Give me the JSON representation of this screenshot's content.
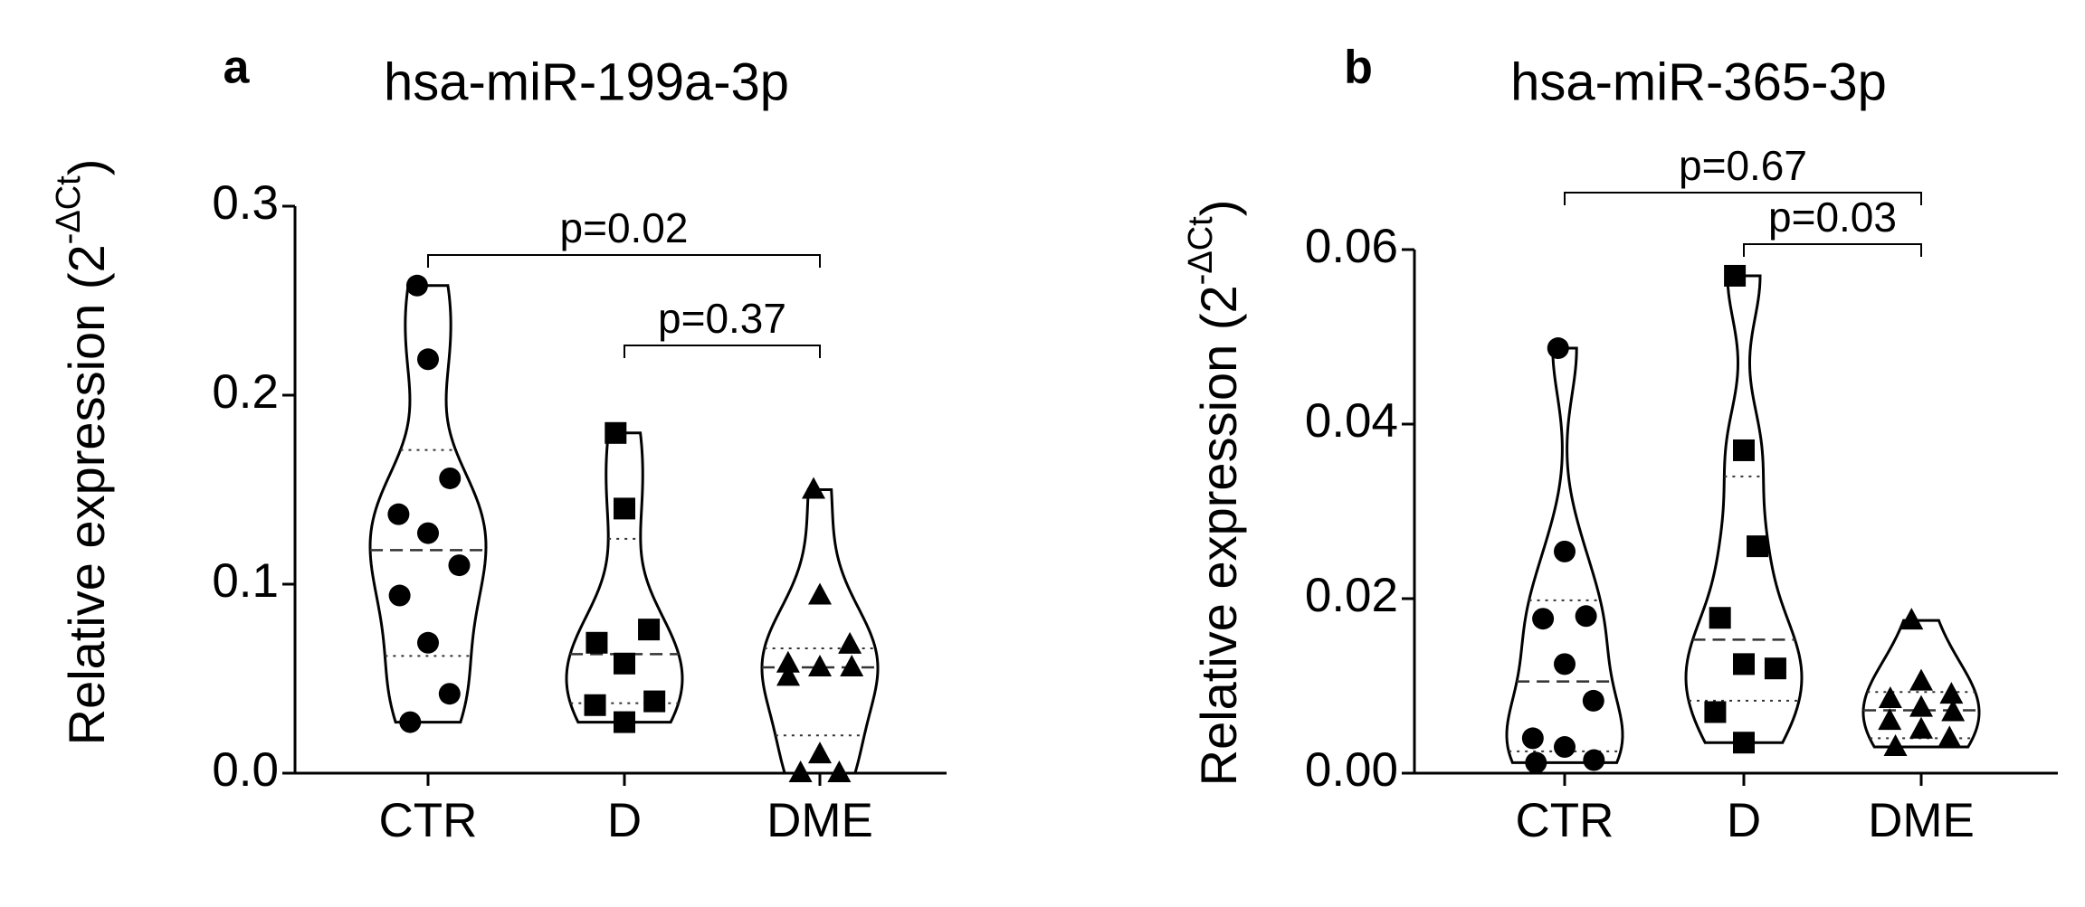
{
  "chart_data": [
    {
      "type": "violin",
      "panel_label": "a",
      "title": "hsa-miR-199a-3p",
      "y_label": {
        "text": "Relative expression (2",
        "superscript": "-ΔCt",
        "suffix": ")"
      },
      "categories": [
        "CTR",
        "D",
        "DME"
      ],
      "markers": [
        "circle",
        "square",
        "triangle"
      ],
      "values": [
        [
          0.258,
          0.219,
          0.156,
          0.137,
          0.127,
          0.11,
          0.094,
          0.069,
          0.042,
          0.027
        ],
        [
          0.18,
          0.14,
          0.076,
          0.069,
          0.058,
          0.038,
          0.036,
          0.027
        ],
        [
          0.15,
          0.094,
          0.068,
          0.058,
          0.056,
          0.056,
          0.051,
          0.01,
          0,
          0
        ]
      ],
      "median": [
        0.118,
        0.063,
        0.056
      ],
      "q1": [
        0.062,
        0.037,
        0.02
      ],
      "q3": [
        0.171,
        0.124,
        0.066
      ],
      "ylim": [
        0,
        0.3
      ],
      "yticks": [
        {
          "value": 0,
          "label": "0.0"
        },
        0.1,
        0.2,
        0.3
      ],
      "annotations": [
        {
          "text": "p=0.02",
          "from": "CTR",
          "to": "DME"
        },
        {
          "text": "p=0.37",
          "from": "D",
          "to": "DME"
        }
      ],
      "color": "#000000"
    },
    {
      "type": "violin",
      "panel_label": "b",
      "title": "hsa-miR-365-3p",
      "y_label": {
        "text": "Relative expression (2",
        "superscript": "-ΔCt",
        "suffix": ")"
      },
      "categories": [
        "CTR",
        "D",
        "DME"
      ],
      "markers": [
        "circle",
        "square",
        "triangle"
      ],
      "values": [
        [
          0.0487,
          0.0254,
          0.018,
          0.0177,
          0.0125,
          0.0083,
          0.004,
          0.003,
          0.0015,
          0.0012
        ],
        [
          0.057,
          0.037,
          0.026,
          0.0178,
          0.0125,
          0.012,
          0.007,
          0.0035
        ],
        [
          0.0175,
          0.0105,
          0.009,
          0.0085,
          0.0075,
          0.007,
          0.006,
          0.005,
          0.004,
          0.003
        ]
      ],
      "median": [
        0.0105,
        0.0153,
        0.0072
      ],
      "q1": [
        0.0025,
        0.0083,
        0.004
      ],
      "q3": [
        0.0198,
        0.034,
        0.0093
      ],
      "ylim": [
        0,
        0.06
      ],
      "yticks": [
        {
          "value": 0,
          "label": "0.00"
        },
        {
          "value": 0.02,
          "label": "0.02"
        },
        {
          "value": 0.04,
          "label": "0.04"
        },
        {
          "value": 0.06,
          "label": "0.06"
        }
      ],
      "annotations": [
        {
          "text": "p=0.67",
          "from": "CTR",
          "to": "DME"
        },
        {
          "text": "p=0.03",
          "from": "D",
          "to": "DME"
        }
      ],
      "color": "#000000"
    }
  ]
}
